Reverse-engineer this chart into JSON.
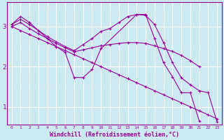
{
  "title": "",
  "xlabel": "Windchill (Refroidissement éolien,°C)",
  "ylabel": "",
  "bg_color": "#cce8f0",
  "line_color": "#990099",
  "grid_color": "#ffffff",
  "xlim": [
    -0.5,
    23.5
  ],
  "ylim": [
    0.55,
    3.6
  ],
  "yticks": [
    1,
    2,
    3
  ],
  "xticks": [
    0,
    1,
    2,
    3,
    4,
    5,
    6,
    7,
    8,
    9,
    10,
    11,
    12,
    13,
    14,
    15,
    16,
    17,
    18,
    19,
    20,
    21,
    22,
    23
  ],
  "series": [
    {
      "x": [
        0,
        1,
        2,
        3,
        4,
        5,
        6,
        7,
        8,
        9,
        10,
        14,
        15,
        16,
        17,
        18,
        19,
        20,
        21
      ],
      "y": [
        3.05,
        3.25,
        3.1,
        2.9,
        2.7,
        2.5,
        2.35,
        1.73,
        1.73,
        1.93,
        2.45,
        3.3,
        3.3,
        2.7,
        2.1,
        1.75,
        1.35,
        1.35,
        0.65
      ]
    },
    {
      "x": [
        0,
        1,
        2,
        3,
        4,
        5,
        6,
        7,
        8,
        9,
        10,
        11,
        12,
        13,
        14,
        15,
        16,
        17,
        18,
        19,
        20,
        21
      ],
      "y": [
        3.0,
        3.1,
        2.95,
        2.82,
        2.7,
        2.58,
        2.47,
        2.37,
        2.42,
        2.47,
        2.52,
        2.55,
        2.58,
        2.6,
        2.6,
        2.58,
        2.52,
        2.45,
        2.38,
        2.28,
        2.15,
        2.0
      ]
    },
    {
      "x": [
        0,
        1,
        2,
        3,
        4,
        5,
        6,
        7,
        8,
        9,
        10,
        11,
        12,
        13,
        14,
        15,
        16,
        17,
        18,
        19,
        20,
        21,
        22,
        23
      ],
      "y": [
        3.0,
        2.9,
        2.8,
        2.7,
        2.6,
        2.5,
        2.4,
        2.3,
        2.2,
        2.1,
        2.0,
        1.9,
        1.8,
        1.7,
        1.6,
        1.5,
        1.4,
        1.3,
        1.2,
        1.1,
        1.0,
        0.9,
        0.8,
        0.7
      ]
    },
    {
      "x": [
        0,
        1,
        2,
        3,
        4,
        5,
        6,
        7,
        8,
        9,
        10,
        11,
        12,
        13,
        14,
        15,
        16,
        17,
        18,
        19,
        20,
        21,
        22,
        23
      ],
      "y": [
        3.05,
        3.18,
        3.05,
        2.9,
        2.75,
        2.62,
        2.5,
        2.4,
        2.55,
        2.7,
        2.88,
        2.95,
        3.1,
        3.25,
        3.3,
        3.28,
        3.05,
        2.6,
        2.1,
        1.72,
        1.55,
        1.4,
        1.35,
        0.62
      ]
    }
  ]
}
